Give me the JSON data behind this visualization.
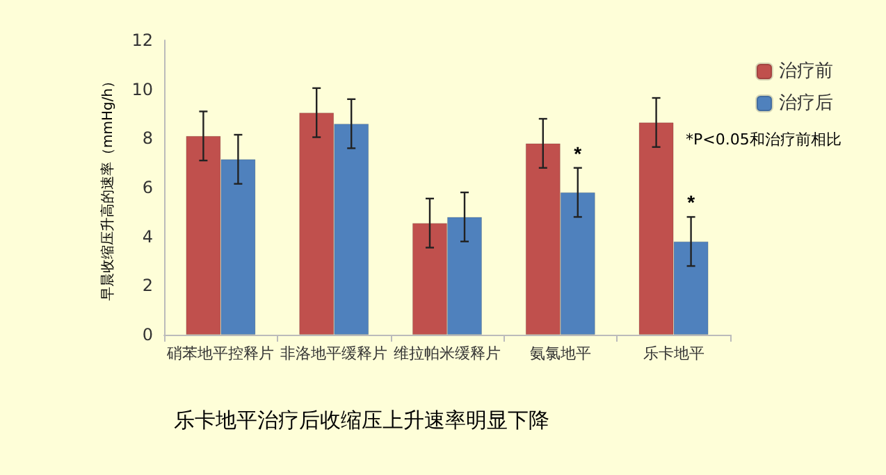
{
  "chart_data": {
    "type": "bar",
    "title": "乐卡地平治疗后收缩压上升速率明显下降",
    "ylabel": "早晨收缩压升高的速率（mmHg/h）",
    "categories": [
      "硝苯地平控释片",
      "非洛地平缓释片",
      "维拉帕米缓释片",
      "氨氯地平",
      "乐卡地平"
    ],
    "series": [
      {
        "name": "治疗前",
        "color": "#c0504d",
        "values": [
          8.1,
          9.05,
          4.55,
          7.8,
          8.65
        ],
        "errors": [
          1,
          1,
          1,
          1,
          1
        ]
      },
      {
        "name": "治疗后",
        "color": "#4f81bd",
        "values": [
          7.15,
          8.6,
          4.8,
          5.8,
          3.8
        ],
        "errors": [
          1,
          1,
          1,
          1,
          1
        ]
      }
    ],
    "annotations": [
      {
        "text": "*",
        "x": "氨氯地平",
        "y": 7
      },
      {
        "text": "*",
        "x": "乐卡地平",
        "y": 5
      },
      "*P<0.05和治疗前相比"
    ],
    "ylim": [
      0,
      12
    ],
    "yticks": [
      0,
      2,
      4,
      6,
      8,
      10,
      12
    ],
    "grid": false,
    "legend": "top right"
  }
}
